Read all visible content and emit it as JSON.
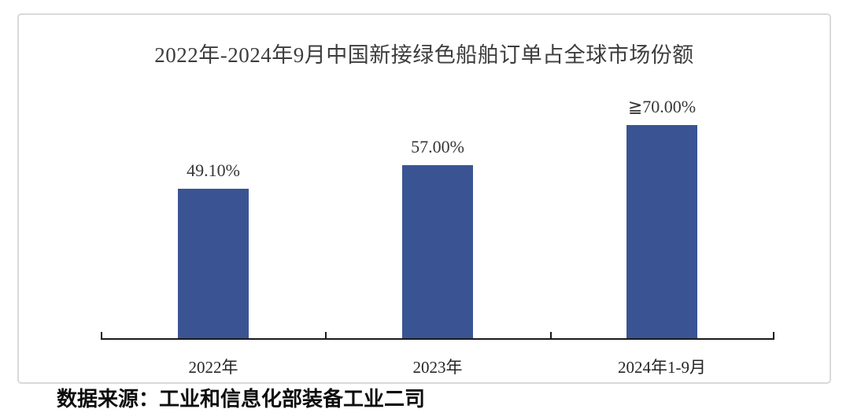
{
  "page": {
    "title": "2022年-2024年9月中国新接绿色船舶订单占全球市场份额",
    "source_note": "数据来源：工业和信息化部装备工业二司"
  },
  "colors": {
    "bar": "#3a5493",
    "axis": "#1a1a1a",
    "card_border": "#d9d9d9",
    "title_text": "#3d3d3d",
    "label_text": "#363636"
  },
  "chart_data": {
    "type": "bar",
    "title": "2022年-2024年9月中国新接绿色船舶订单占全球市场份额",
    "categories": [
      "2022年",
      "2023年",
      "2024年1-9月"
    ],
    "values": [
      49.1,
      57.0,
      70.0
    ],
    "value_labels": [
      "49.10%",
      "57.00%",
      "≧70.00%"
    ],
    "unit": "%",
    "xlabel": "",
    "ylabel": "",
    "ylim": [
      0,
      75
    ],
    "grid": false,
    "legend": "none",
    "bar_color": "#3a5493",
    "source": "数据来源：工业和信息化部装备工业二司"
  }
}
